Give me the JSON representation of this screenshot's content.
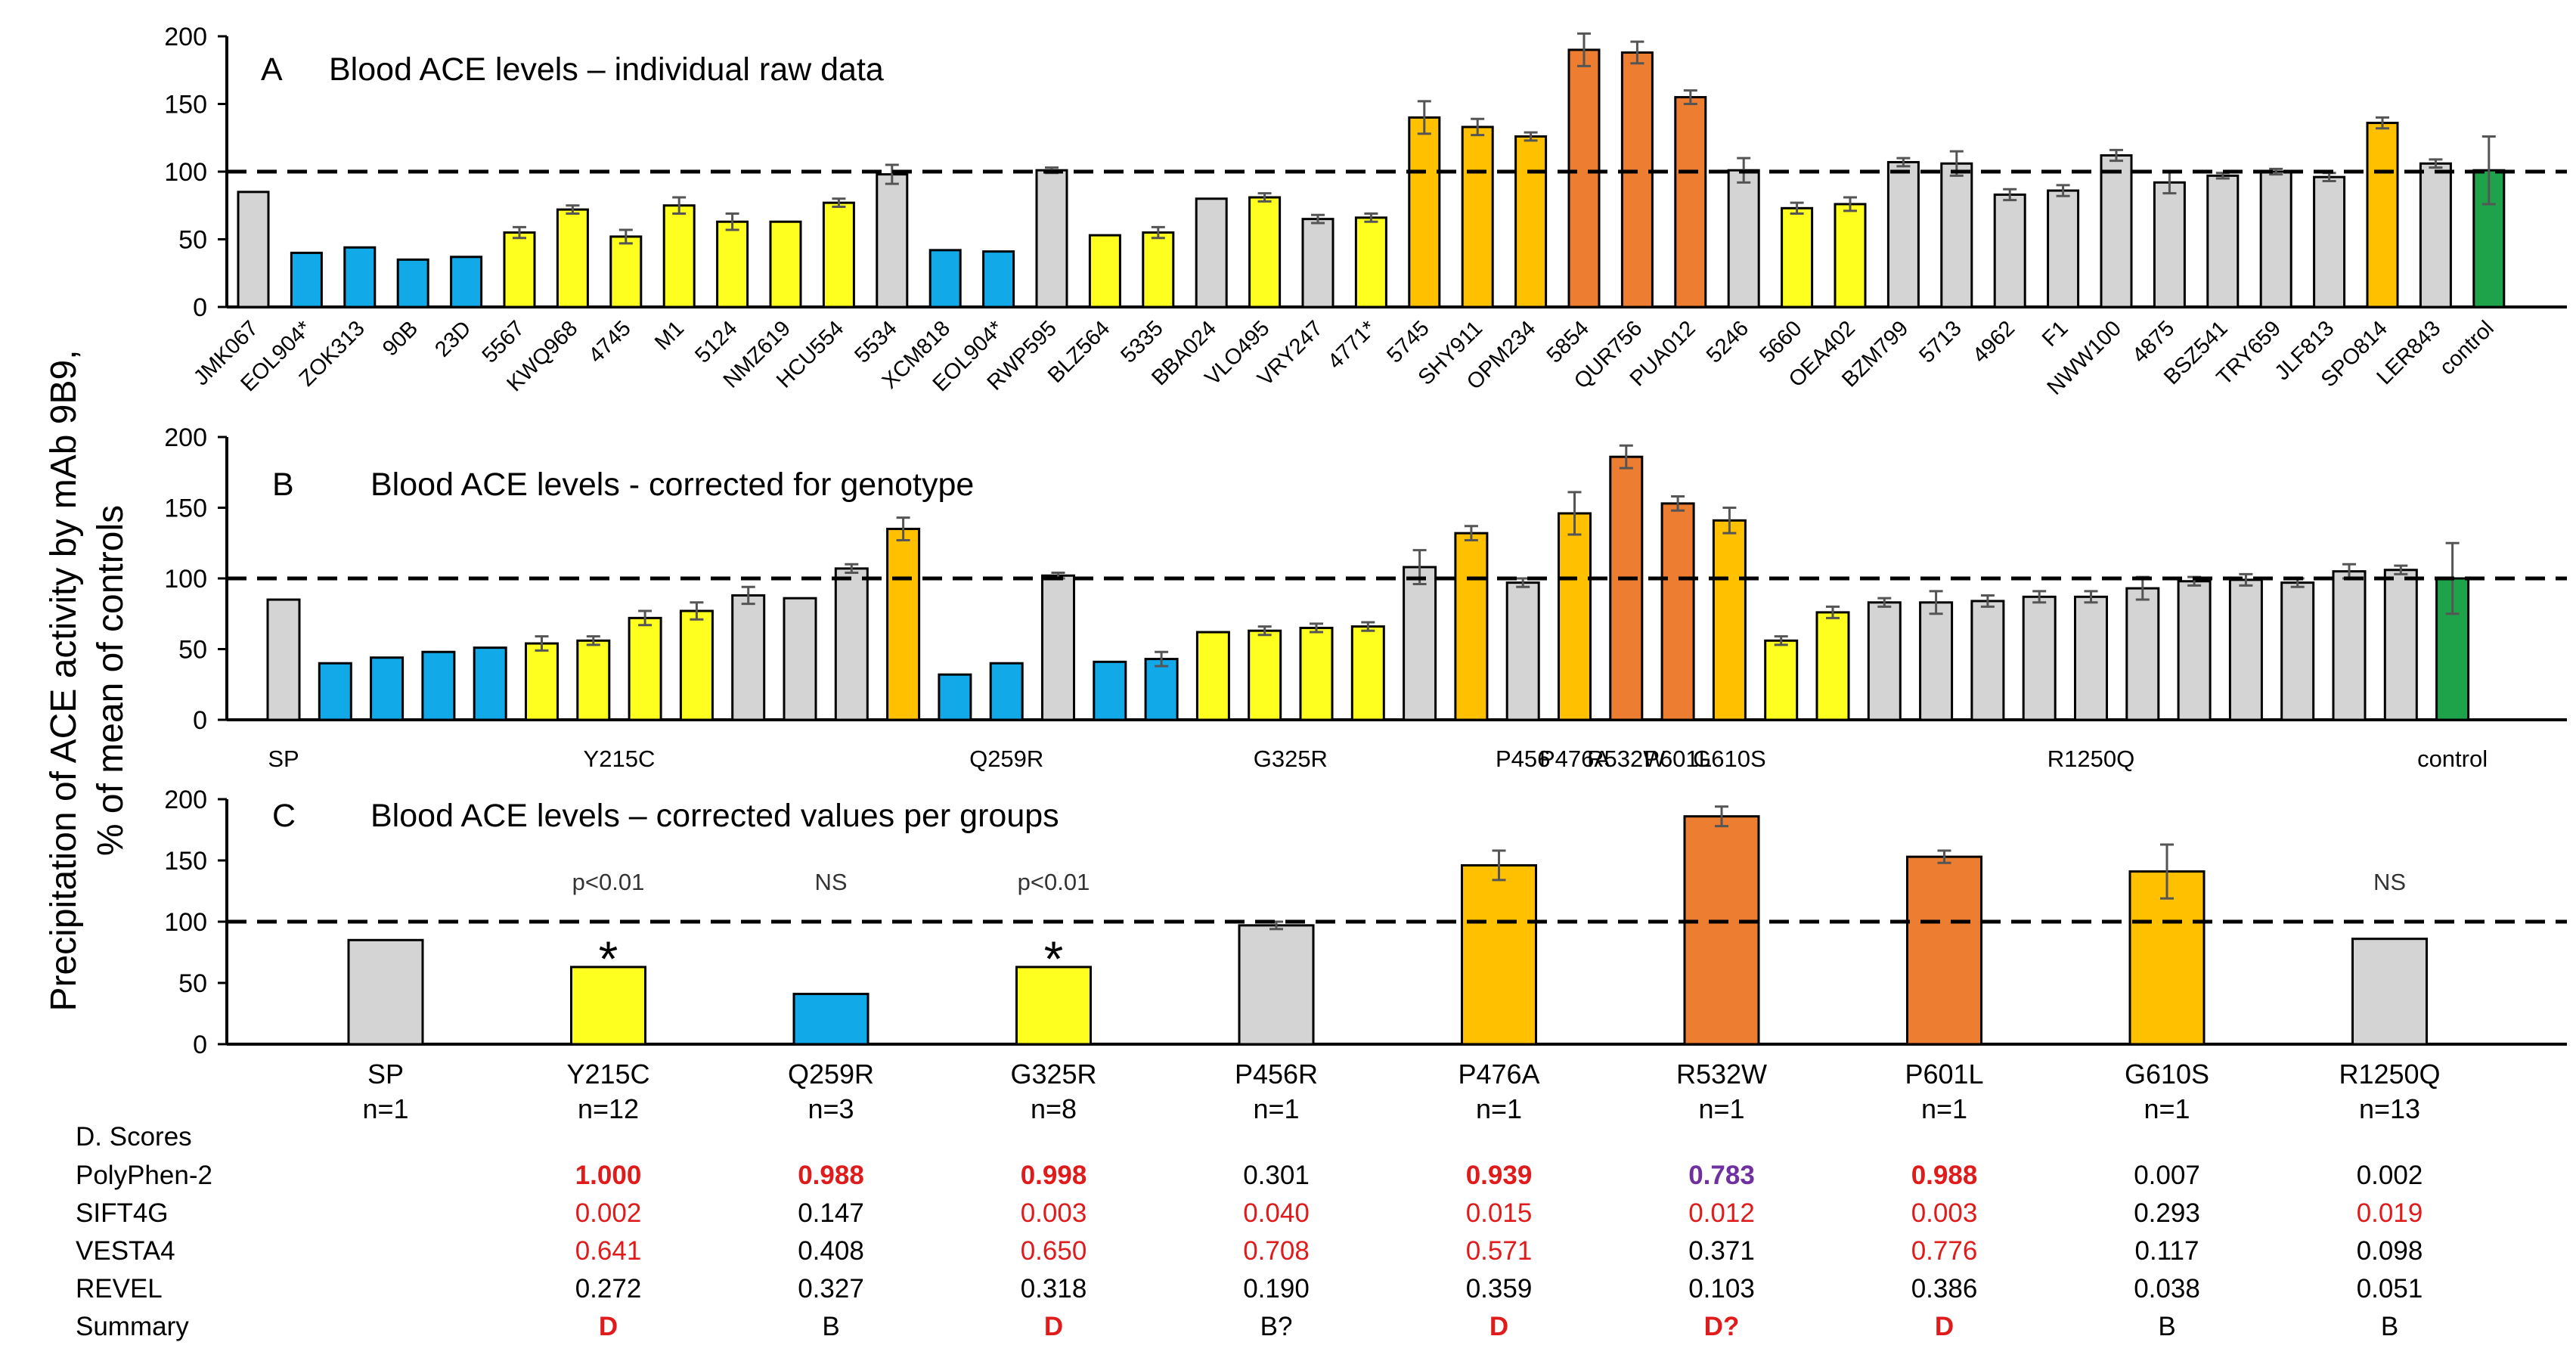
{
  "y_axis_title": {
    "line1": "Precipitation of ACE activity by mAb 9B9,",
    "line2": "% of mean of controls"
  },
  "colors": {
    "gray": "#d4d4d4",
    "blue": "#12a9e8",
    "yellow": "#ffff1f",
    "orange": "#ffc000",
    "darkorange": "#ed7d31",
    "green": "#1fa34a",
    "red_text": "#e01b1b",
    "purple_text": "#7030a0",
    "black_text": "#000000"
  },
  "chart_data": [
    {
      "panel": "A",
      "type": "bar",
      "title": "Blood ACE levels – individual raw data",
      "panel_letter": "A",
      "ylim": [
        0,
        200
      ],
      "yticks": [
        "0",
        "50",
        "100",
        "150",
        "200"
      ],
      "reference_line": 100,
      "categories": [
        "JMK067",
        "EOL904*",
        "ZOK313",
        "90B",
        "23D",
        "5567",
        "KWQ968",
        "4745",
        "M1",
        "5124",
        "NMZ619",
        "HCU554",
        "5534",
        "XCM818",
        "EOL904*",
        "RWP595",
        "BLZ564",
        "5335",
        "BBA024",
        "VLO495",
        "VRY247",
        "4771*",
        "5745",
        "SHY911",
        "OPM234",
        "5854",
        "QUR756",
        "PUA012",
        "5246",
        "5660",
        "OEA402",
        "BZM799",
        "5713",
        "4962",
        "F1",
        "NWW100",
        "4875",
        "BSZ541",
        "TRY659",
        "JLF813",
        "SPO814",
        "LER843",
        "control"
      ],
      "values": [
        85,
        40,
        44,
        35,
        37,
        55,
        72,
        52,
        75,
        63,
        63,
        77,
        98,
        42,
        41,
        101,
        53,
        55,
        80,
        81,
        65,
        66,
        140,
        133,
        126,
        190,
        188,
        155,
        101,
        73,
        76,
        107,
        106,
        83,
        86,
        112,
        92,
        97,
        100,
        96,
        136,
        106,
        101
      ],
      "errors": [
        0,
        0,
        0,
        0,
        0,
        4,
        3,
        5,
        6,
        6,
        0,
        3,
        7,
        0,
        0,
        2,
        0,
        4,
        0,
        3,
        3,
        3,
        12,
        6,
        3,
        12,
        8,
        5,
        9,
        4,
        5,
        3,
        9,
        4,
        4,
        4,
        8,
        2,
        2,
        3,
        4,
        3,
        25
      ],
      "colors": [
        "gray",
        "blue",
        "blue",
        "blue",
        "blue",
        "yellow",
        "yellow",
        "yellow",
        "yellow",
        "yellow",
        "yellow",
        "yellow",
        "gray",
        "blue",
        "blue",
        "gray",
        "yellow",
        "yellow",
        "gray",
        "yellow",
        "gray",
        "yellow",
        "orange",
        "orange",
        "orange",
        "darkorange",
        "darkorange",
        "darkorange",
        "gray",
        "yellow",
        "yellow",
        "gray",
        "gray",
        "gray",
        "gray",
        "gray",
        "gray",
        "gray",
        "gray",
        "gray",
        "orange",
        "gray",
        "green"
      ]
    },
    {
      "panel": "B",
      "type": "bar",
      "title": "Blood ACE levels - corrected  for genotype",
      "panel_letter": "B",
      "ylim": [
        0,
        200
      ],
      "yticks": [
        "0",
        "50",
        "100",
        "150",
        "200"
      ],
      "reference_line": 100,
      "group_labels": [
        "SP",
        "Y215C",
        "Q259R",
        "G325R",
        "P456",
        "P476A",
        "R532W",
        "P601L",
        "G610S",
        "R1250Q",
        "control"
      ],
      "groups": [
        "SP",
        "Y215C",
        "Y215C",
        "Y215C",
        "Y215C",
        "Y215C",
        "Y215C",
        "Y215C",
        "Y215C",
        "Y215C",
        "Y215C",
        "Y215C",
        "Y215C",
        "Q259R",
        "Q259R",
        "Q259R",
        "G325R",
        "G325R",
        "G325R",
        "G325R",
        "G325R",
        "G325R",
        "G325R",
        "G325R",
        "P456",
        "P476A",
        "R532W",
        "P601L",
        "G610S",
        "R1250Q",
        "R1250Q",
        "R1250Q",
        "R1250Q",
        "R1250Q",
        "R1250Q",
        "R1250Q",
        "R1250Q",
        "R1250Q",
        "R1250Q",
        "R1250Q",
        "R1250Q",
        "R1250Q",
        "control"
      ],
      "values": [
        85,
        40,
        44,
        48,
        51,
        54,
        56,
        72,
        77,
        88,
        86,
        107,
        135,
        32,
        40,
        102,
        41,
        43,
        62,
        63,
        65,
        66,
        108,
        132,
        97,
        146,
        186,
        153,
        141,
        56,
        76,
        83,
        83,
        84,
        87,
        87,
        93,
        98,
        99,
        97,
        105,
        106,
        100
      ],
      "errors": [
        0,
        0,
        0,
        0,
        0,
        5,
        3,
        5,
        6,
        6,
        0,
        3,
        8,
        0,
        0,
        2,
        0,
        5,
        0,
        3,
        3,
        3,
        12,
        5,
        3,
        15,
        8,
        5,
        9,
        3,
        4,
        3,
        8,
        4,
        4,
        4,
        8,
        3,
        4,
        3,
        5,
        3,
        25
      ],
      "colors": [
        "gray",
        "blue",
        "blue",
        "blue",
        "blue",
        "yellow",
        "yellow",
        "yellow",
        "yellow",
        "gray",
        "gray",
        "gray",
        "orange",
        "blue",
        "blue",
        "gray",
        "blue",
        "blue",
        "yellow",
        "yellow",
        "yellow",
        "yellow",
        "gray",
        "orange",
        "gray",
        "orange",
        "darkorange",
        "darkorange",
        "orange",
        "yellow",
        "yellow",
        "gray",
        "gray",
        "gray",
        "gray",
        "gray",
        "gray",
        "gray",
        "gray",
        "gray",
        "gray",
        "gray",
        "green"
      ]
    },
    {
      "panel": "C",
      "type": "bar",
      "title": "Blood ACE levels – corrected values per groups",
      "panel_letter": "C",
      "ylim": [
        0,
        200
      ],
      "yticks": [
        "0",
        "50",
        "100",
        "150",
        "200"
      ],
      "reference_line": 100,
      "categories": [
        "SP",
        "Y215C",
        "Q259R",
        "G325R",
        "P456R",
        "P476A",
        "R532W",
        "P601L",
        "G610S",
        "R1250Q"
      ],
      "n_labels": [
        "n=1",
        "n=12",
        "n=3",
        "n=8",
        "n=1",
        "n=1",
        "n=1",
        "n=1",
        "n=1",
        "n=13"
      ],
      "values": [
        85,
        63,
        41,
        63,
        97,
        146,
        186,
        153,
        141,
        86
      ],
      "errors": [
        0,
        0,
        0,
        0,
        3,
        12,
        8,
        5,
        22,
        0
      ],
      "colors": [
        "gray",
        "yellow",
        "blue",
        "yellow",
        "gray",
        "orange",
        "darkorange",
        "darkorange",
        "orange",
        "gray"
      ],
      "pvalues": [
        "",
        "p<0.01",
        "NS",
        "p<0.01",
        "",
        "",
        "",
        "",
        "",
        "NS"
      ],
      "significance_marks": [
        "",
        "*",
        "",
        "*",
        "",
        "",
        "",
        "",
        "",
        ""
      ]
    }
  ],
  "scores": {
    "heading": "D.  Scores",
    "rows": [
      {
        "label": "PolyPhen-2",
        "values": [
          "",
          "1.000",
          "0.988",
          "0.998",
          "0.301",
          "0.939",
          "0.783",
          "0.988",
          "0.007",
          "0.002"
        ],
        "colors": [
          "black_text",
          "red_text",
          "red_text",
          "red_text",
          "black_text",
          "red_text",
          "purple_text",
          "red_text",
          "black_text",
          "black_text"
        ],
        "bold": [
          false,
          true,
          true,
          true,
          false,
          true,
          true,
          true,
          false,
          false
        ]
      },
      {
        "label": "SIFT4G",
        "values": [
          "",
          "0.002",
          "0.147",
          "0.003",
          "0.040",
          "0.015",
          "0.012",
          "0.003",
          "0.293",
          "0.019"
        ],
        "colors": [
          "black_text",
          "red_text",
          "black_text",
          "red_text",
          "red_text",
          "red_text",
          "red_text",
          "red_text",
          "black_text",
          "red_text"
        ],
        "bold": [
          false,
          false,
          false,
          false,
          false,
          false,
          false,
          false,
          false,
          false
        ]
      },
      {
        "label": "VESTA4",
        "values": [
          "",
          "0.641",
          "0.408",
          "0.650",
          "0.708",
          "0.571",
          "0.371",
          "0.776",
          "0.117",
          "0.098"
        ],
        "colors": [
          "black_text",
          "red_text",
          "black_text",
          "red_text",
          "red_text",
          "red_text",
          "black_text",
          "red_text",
          "black_text",
          "black_text"
        ],
        "bold": [
          false,
          false,
          false,
          false,
          false,
          false,
          false,
          false,
          false,
          false
        ]
      },
      {
        "label": "REVEL",
        "values": [
          "",
          "0.272",
          "0.327",
          "0.318",
          "0.190",
          "0.359",
          "0.103",
          "0.386",
          "0.038",
          "0.051"
        ],
        "colors": [
          "black_text",
          "black_text",
          "black_text",
          "black_text",
          "black_text",
          "black_text",
          "black_text",
          "black_text",
          "black_text",
          "black_text"
        ],
        "bold": [
          false,
          false,
          false,
          false,
          false,
          false,
          false,
          false,
          false,
          false
        ]
      },
      {
        "label": "Summary",
        "values": [
          "",
          "D",
          "B",
          "D",
          "B?",
          "D",
          "D?",
          "D",
          "B",
          "B"
        ],
        "colors": [
          "black_text",
          "red_text",
          "black_text",
          "red_text",
          "black_text",
          "red_text",
          "red_text",
          "red_text",
          "black_text",
          "black_text"
        ],
        "bold": [
          false,
          true,
          false,
          true,
          false,
          true,
          true,
          true,
          false,
          false
        ]
      }
    ]
  }
}
